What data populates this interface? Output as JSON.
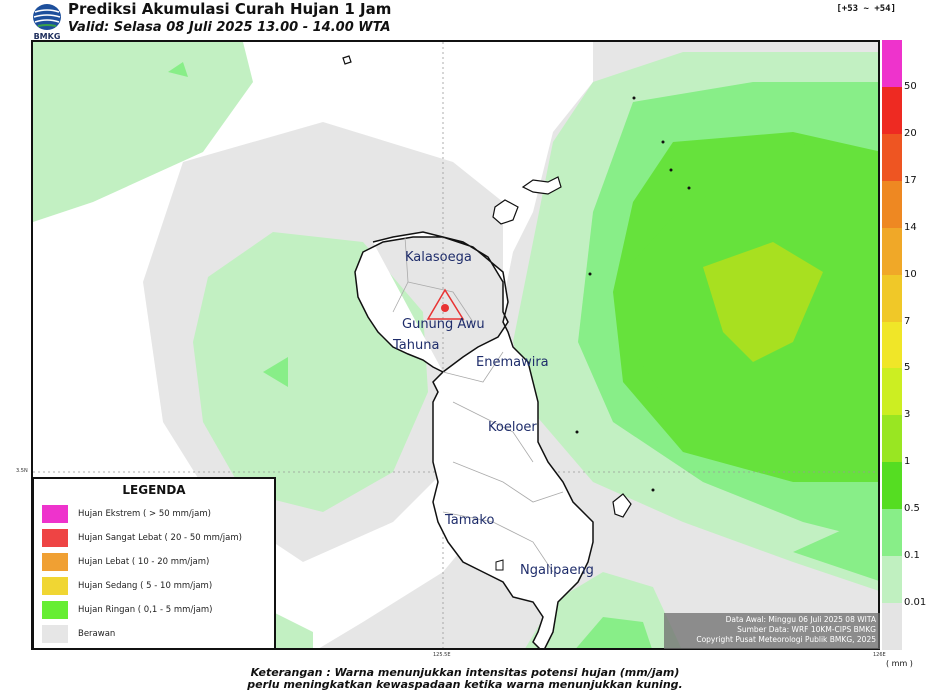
{
  "header": {
    "title": "Prediksi Akumulasi Curah Hujan 1 Jam",
    "valid": "Valid: Selasa 08 Juli 2025 13.00 - 14.00 WTA",
    "logo_text": "BMKG",
    "coord_range": "[+53 ~ +54]"
  },
  "map": {
    "places": [
      "Kalasoega",
      "Gunung Awu",
      "Tahuna",
      "Enemawira",
      "Koeloer",
      "Tamako",
      "Ngalipaeng"
    ],
    "ticks": {
      "lat": "3.5N",
      "lon1": "125.5E",
      "lon2": "126E"
    }
  },
  "legend": {
    "title": "LEGENDA",
    "items": [
      {
        "label": "Hujan Ekstrem ( > 50 mm/jam)",
        "color": "#ee33cc"
      },
      {
        "label": "Hujan Sangat Lebat ( 20 - 50 mm/jam)",
        "color": "#ee4444"
      },
      {
        "label": "Hujan Lebat ( 10 - 20 mm/jam)",
        "color": "#f0a033"
      },
      {
        "label": "Hujan Sedang ( 5 - 10 mm/jam)",
        "color": "#f0d633"
      },
      {
        "label": "Hujan Ringan ( 0,1 - 5 mm/jam)",
        "color": "#66ee33"
      },
      {
        "label": "Berawan",
        "color": "#e6e6e6"
      }
    ]
  },
  "scale": {
    "labels": [
      "50",
      "20",
      "17",
      "14",
      "10",
      "7",
      "5",
      "3",
      "1",
      "0.5",
      "0.1",
      "0.01"
    ],
    "colors": [
      "#ee33cc",
      "#ee2a22",
      "#ee5522",
      "#ee8822",
      "#f0a828",
      "#f0c828",
      "#f0e628",
      "#ccee22",
      "#99e622",
      "#55dd22",
      "#88ee88",
      "#c0f0c0",
      "#e4e4e4"
    ],
    "unit": "( mm )"
  },
  "info": {
    "line1": "Data Awal: Minggu 06 Juli 2025 08 WITA",
    "line2": "Sumber Data: WRF 10KM-CIPS BMKG",
    "line3": "Copyright Pusat Meteorologi Publik BMKG, 2025"
  },
  "footer": {
    "line1": "Keterangan : Warna menunjukkan intensitas potensi hujan (mm/jam)",
    "line2": "perlu meningkatkan kewaspadaan ketika warna menunjukkan kuning."
  }
}
